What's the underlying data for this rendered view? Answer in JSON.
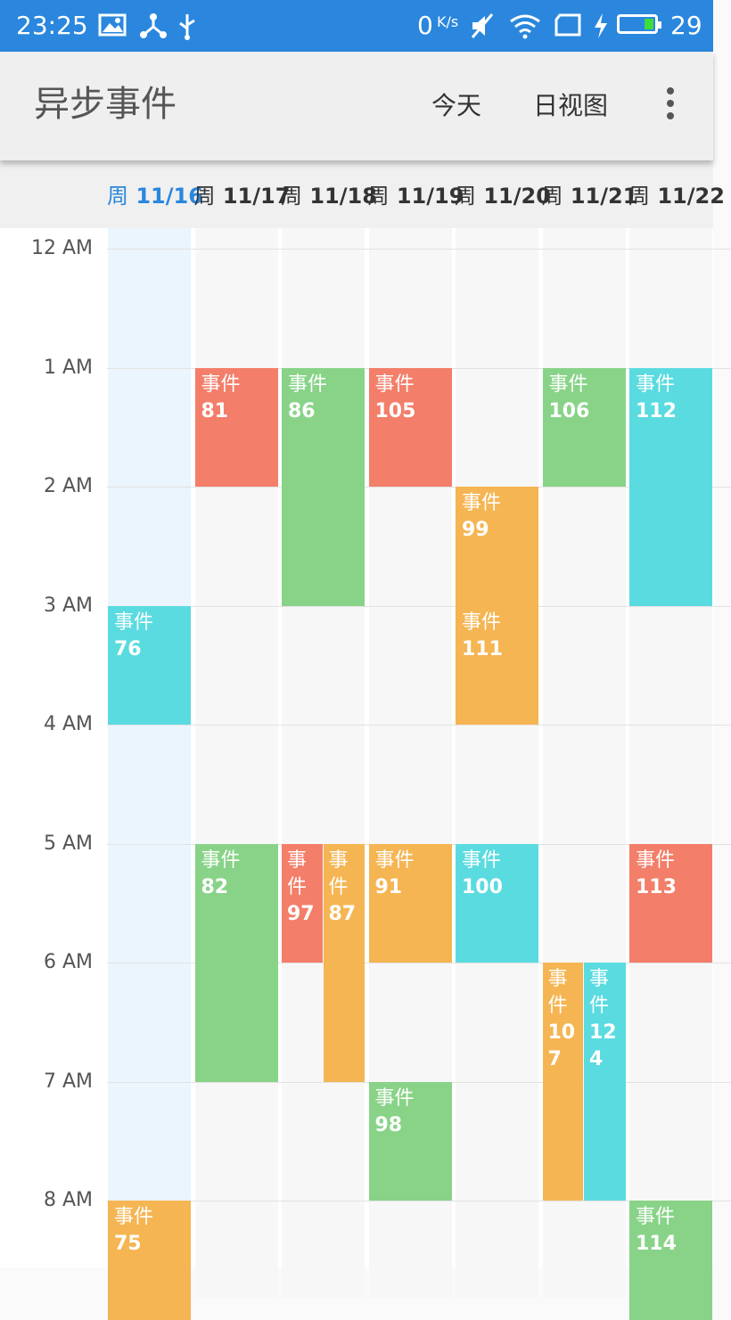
{
  "status_bar": {
    "time": "23:25",
    "net_speed": "0",
    "net_unit": "K/s",
    "battery": "29",
    "icons": [
      "image-icon",
      "share-icon",
      "usb-icon",
      "mute-icon",
      "wifi-icon",
      "sim-icon",
      "charging-icon"
    ]
  },
  "toolbar": {
    "title": "异步事件",
    "today_button": "今天",
    "view_button": "日视图",
    "menu_icon": "more-vert-icon"
  },
  "days": [
    {
      "prefix": "周",
      "date": "11/16",
      "today": true
    },
    {
      "prefix": "周",
      "date": "11/17"
    },
    {
      "prefix": "周",
      "date": "11/18"
    },
    {
      "prefix": "周",
      "date": "11/19"
    },
    {
      "prefix": "周",
      "date": "11/20"
    },
    {
      "prefix": "周",
      "date": "11/21"
    },
    {
      "prefix": "周",
      "date": "11/22"
    }
  ],
  "time_labels": [
    "12 AM",
    "1 AM",
    "2 AM",
    "3 AM",
    "4 AM",
    "5 AM",
    "6 AM",
    "7 AM",
    "8 AM"
  ],
  "event_label": "事件",
  "events": [
    {
      "num": "76",
      "day": 0,
      "start": 3,
      "end": 4,
      "color": "cyan"
    },
    {
      "num": "75",
      "day": 0,
      "start": 8,
      "end": 9,
      "color": "orange"
    },
    {
      "num": "81",
      "day": 1,
      "start": 1,
      "end": 2,
      "color": "red"
    },
    {
      "num": "82",
      "day": 1,
      "start": 5,
      "end": 7,
      "color": "green"
    },
    {
      "num": "86",
      "day": 2,
      "start": 1,
      "end": 3,
      "color": "green"
    },
    {
      "num": "97",
      "day": 2,
      "start": 5,
      "end": 6,
      "color": "red",
      "lane": 0,
      "lanes": 2
    },
    {
      "num": "87",
      "day": 2,
      "start": 5,
      "end": 7,
      "color": "orange",
      "lane": 1,
      "lanes": 2
    },
    {
      "num": "105",
      "day": 3,
      "start": 1,
      "end": 2,
      "color": "red"
    },
    {
      "num": "91",
      "day": 3,
      "start": 5,
      "end": 6,
      "color": "orange"
    },
    {
      "num": "98",
      "day": 3,
      "start": 7,
      "end": 8,
      "color": "green"
    },
    {
      "num": "99",
      "day": 4,
      "start": 2,
      "end": 3,
      "color": "orange"
    },
    {
      "num": "111",
      "day": 4,
      "start": 3,
      "end": 4,
      "color": "orange"
    },
    {
      "num": "100",
      "day": 4,
      "start": 5,
      "end": 6,
      "color": "cyan"
    },
    {
      "num": "106",
      "day": 5,
      "start": 1,
      "end": 2,
      "color": "green"
    },
    {
      "num": "107",
      "day": 5,
      "start": 6,
      "end": 8,
      "color": "orange",
      "lane": 0,
      "lanes": 2
    },
    {
      "num": "124",
      "day": 5,
      "start": 6,
      "end": 8,
      "color": "cyan",
      "lane": 1,
      "lanes": 2
    },
    {
      "num": "112",
      "day": 6,
      "start": 1,
      "end": 3,
      "color": "cyan"
    },
    {
      "num": "113",
      "day": 6,
      "start": 5,
      "end": 6,
      "color": "red"
    },
    {
      "num": "114",
      "day": 6,
      "start": 8,
      "end": 9,
      "color": "green"
    }
  ]
}
